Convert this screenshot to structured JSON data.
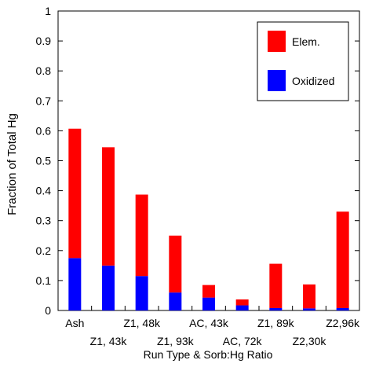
{
  "chart_data": {
    "type": "bar",
    "stacked": true,
    "title": "",
    "xlabel": "Run Type & Sorb:Hg Ratio",
    "ylabel": "Fraction of Total Hg",
    "ylim": [
      0,
      1
    ],
    "yticks": [
      "0",
      "0.1",
      "0.2",
      "0.3",
      "0.4",
      "0.5",
      "0.6",
      "0.7",
      "0.8",
      "0.9",
      "1"
    ],
    "categories": [
      "Ash",
      "Z1, 43k",
      "Z1, 48k",
      "Z1, 93k",
      "AC, 43k",
      "AC, 72k",
      "Z1, 89k",
      "Z2,30k",
      "Z2,96k"
    ],
    "series": [
      {
        "name": "Oxidized",
        "color": "#0000ff",
        "values": [
          0.175,
          0.15,
          0.115,
          0.06,
          0.043,
          0.017,
          0.008,
          0.007,
          0.008
        ]
      },
      {
        "name": "Elem.",
        "color": "#ff0000",
        "values": [
          0.432,
          0.395,
          0.272,
          0.19,
          0.042,
          0.02,
          0.148,
          0.08,
          0.322
        ]
      }
    ],
    "legend_position": "top-right",
    "grid": false
  }
}
